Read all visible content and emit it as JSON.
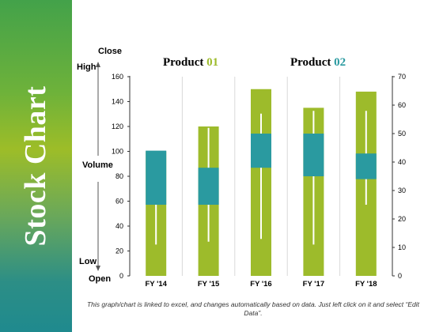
{
  "slide": {
    "title": "Stock Chart",
    "footnote": "This graph/chart is linked to excel, and changes automatically based on data.  Just left click on it and select “Edit Data”."
  },
  "axis_labels": {
    "close": "Close",
    "high": "High",
    "volume": "Volume",
    "low": "Low",
    "open": "Open"
  },
  "legend": {
    "product1_word": "Product",
    "product1_num": "01",
    "product2_word": "Product",
    "product2_num": "02"
  },
  "colors": {
    "volume_bar": "#9dbb2b",
    "candle": "#2a9aa0",
    "wick": "#ffffff",
    "grid": "#d9d9d9"
  },
  "chart_data": {
    "type": "stock",
    "categories": [
      "FY '14",
      "FY '15",
      "FY '16",
      "FY '17",
      "FY '18"
    ],
    "volume": [
      100,
      120,
      150,
      135,
      148
    ],
    "open": [
      25,
      25,
      38,
      35,
      34
    ],
    "high": [
      44,
      52,
      57,
      58,
      58
    ],
    "low": [
      11,
      12,
      13,
      11,
      25
    ],
    "close": [
      44,
      38,
      50,
      50,
      43
    ],
    "y_left": {
      "min": 0,
      "max": 160,
      "ticks": [
        0,
        20,
        40,
        60,
        80,
        100,
        120,
        140,
        160
      ]
    },
    "y_right": {
      "min": 0,
      "max": 70,
      "ticks": [
        0,
        10,
        20,
        30,
        40,
        50,
        60,
        70
      ]
    }
  }
}
